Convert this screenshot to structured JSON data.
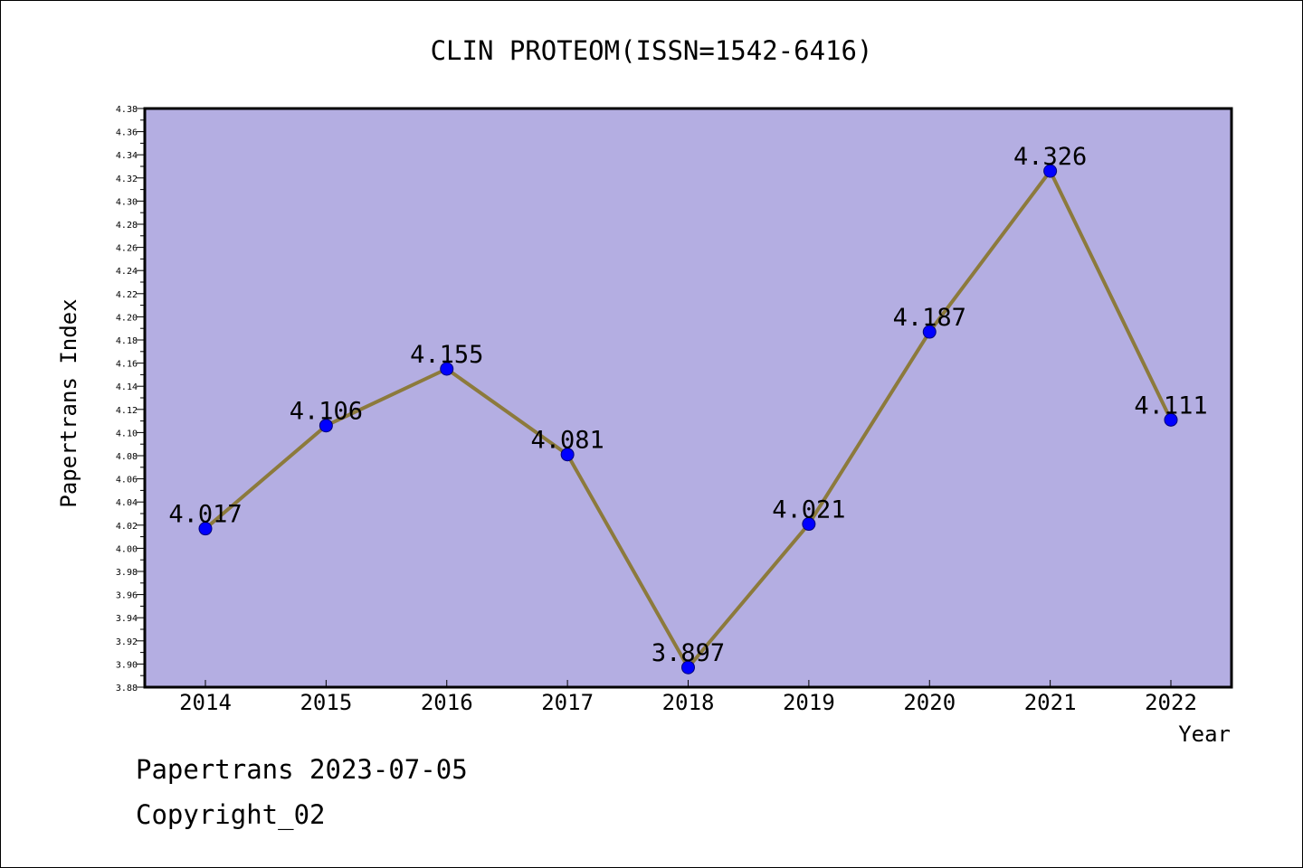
{
  "chart_data": {
    "type": "line",
    "title": "CLIN PROTEOM(ISSN=1542-6416)",
    "xlabel": "Year",
    "ylabel": "Papertrans Index",
    "categories": [
      "2014",
      "2015",
      "2016",
      "2017",
      "2018",
      "2019",
      "2020",
      "2021",
      "2022"
    ],
    "series": [
      {
        "values": [
          4.017,
          4.106,
          4.155,
          4.081,
          3.897,
          4.021,
          4.187,
          4.326,
          4.111
        ],
        "labels": [
          "4.017",
          "4.106",
          "4.155",
          "4.081",
          "3.897",
          "4.021",
          "4.187",
          "4.326",
          "4.111"
        ]
      }
    ],
    "ylim": [
      3.88,
      4.38
    ],
    "ytick_step": 0.02,
    "ytick_minor_step": 0.01,
    "grid": false,
    "colors": {
      "plot_background": "#b4aee2",
      "line": "#8c7a3c",
      "marker": "#0000ff"
    }
  },
  "footer": {
    "date_text": "Papertrans 2023-07-05",
    "copyright_text": "Copyright_02"
  }
}
